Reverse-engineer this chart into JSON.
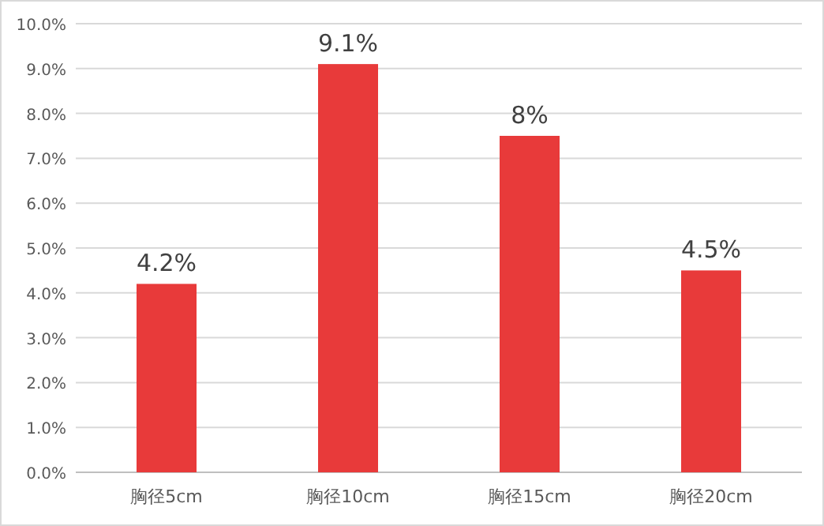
{
  "chart_data": {
    "type": "bar",
    "categories": [
      "胸径5cm",
      "胸径10cm",
      "胸径15cm",
      "胸径20cm"
    ],
    "values": [
      4.2,
      9.1,
      7.5,
      4.5
    ],
    "value_labels": [
      "4.2%",
      "9.1%",
      "8%",
      "4.5%"
    ],
    "color": "#e83a3a",
    "ylim": [
      0,
      10
    ],
    "yticks": [
      {
        "value": 0,
        "label": "0.0%"
      },
      {
        "value": 1,
        "label": "1.0%"
      },
      {
        "value": 2,
        "label": "2.0%"
      },
      {
        "value": 3,
        "label": "3.0%"
      },
      {
        "value": 4,
        "label": "4.0%"
      },
      {
        "value": 5,
        "label": "5.0%"
      },
      {
        "value": 6,
        "label": "6.0%"
      },
      {
        "value": 7,
        "label": "7.0%"
      },
      {
        "value": 8,
        "label": "8.0%"
      },
      {
        "value": 9,
        "label": "9.0%"
      },
      {
        "value": 10,
        "label": "10.0%"
      }
    ],
    "grid": "y"
  }
}
